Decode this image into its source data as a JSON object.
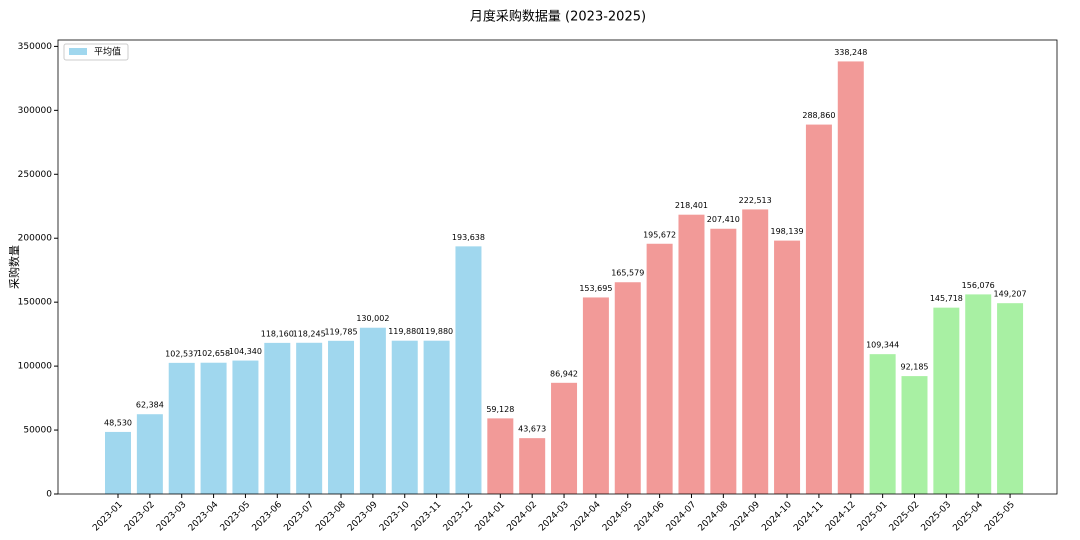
{
  "chart_data": {
    "type": "bar",
    "title": "月度采购数据量 (2023-2025)",
    "y_label": "采购数量",
    "categories": [
      "2023-01",
      "2023-02",
      "2023-03",
      "2023-04",
      "2023-05",
      "2023-06",
      "2023-07",
      "2023-08",
      "2023-09",
      "2023-10",
      "2023-11",
      "2023-12",
      "2024-01",
      "2024-02",
      "2024-03",
      "2024-04",
      "2024-05",
      "2024-06",
      "2024-07",
      "2024-08",
      "2024-09",
      "2024-10",
      "2024-11",
      "2024-12",
      "2025-01",
      "2025-02",
      "2025-03",
      "2025-04",
      "2025-05"
    ],
    "series": [
      {
        "name": "平均值",
        "color": "#a0d7ee",
        "values": [
          48530,
          62384,
          102537,
          102658,
          104340,
          118160,
          118245,
          119785,
          130002,
          119880,
          119880,
          193638,
          59128,
          43673,
          86942,
          153695,
          165579,
          195672,
          218401,
          207410,
          222513,
          198139,
          288860,
          338248,
          109344,
          92185,
          145718,
          156076,
          149207
        ],
        "value_labels": [
          "48,530",
          "62,384",
          "102,537",
          "102,658",
          "104,340",
          "118,160",
          "118,245",
          "119,785",
          "130,002",
          "119,880",
          "119,880",
          "193,638",
          "59,128",
          "43,673",
          "86,942",
          "153,695",
          "165,579",
          "195,672",
          "218,401",
          "207,410",
          "222,513",
          "198,139",
          "288,860",
          "338,248",
          "109,344",
          "92,185",
          "145,718",
          "156,076",
          "149,207"
        ],
        "bar_colors": [
          "#a0d7ee",
          "#a0d7ee",
          "#a0d7ee",
          "#a0d7ee",
          "#a0d7ee",
          "#a0d7ee",
          "#a0d7ee",
          "#a0d7ee",
          "#a0d7ee",
          "#a0d7ee",
          "#a0d7ee",
          "#a0d7ee",
          "#f29a98",
          "#f29a98",
          "#f29a98",
          "#f29a98",
          "#f29a98",
          "#f29a98",
          "#f29a98",
          "#f29a98",
          "#f29a98",
          "#f29a98",
          "#f29a98",
          "#f29a98",
          "#a8f0a3",
          "#a8f0a3",
          "#a8f0a3",
          "#a8f0a3",
          "#a8f0a3"
        ]
      }
    ],
    "ylim": [
      0,
      355000
    ],
    "yticks": [
      0,
      50000,
      100000,
      150000,
      200000,
      250000,
      300000,
      350000
    ],
    "legend": "upper-left",
    "grid": false
  }
}
